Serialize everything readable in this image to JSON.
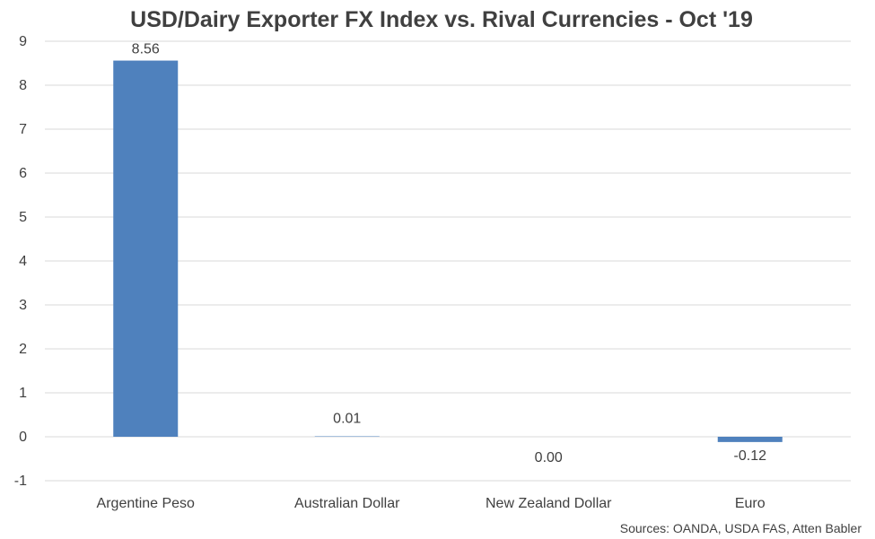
{
  "chart_data": {
    "type": "bar",
    "title": "USD/Dairy Exporter FX Index vs. Rival Currencies - Oct '19",
    "categories": [
      "Argentine Peso",
      "Australian Dollar",
      "New Zealand Dollar",
      "Euro"
    ],
    "values": [
      8.56,
      0.01,
      0.0,
      -0.12
    ],
    "data_labels": [
      "8.56",
      "0.01",
      "0.00",
      "-0.12"
    ],
    "ylim": [
      -1,
      9
    ],
    "yticks": [
      -1,
      0,
      1,
      2,
      3,
      4,
      5,
      6,
      7,
      8,
      9
    ],
    "grid": true,
    "legend": "none",
    "bar_color": "#4f81bd",
    "source": "Sources: OANDA, USDA FAS, Atten Babler"
  }
}
